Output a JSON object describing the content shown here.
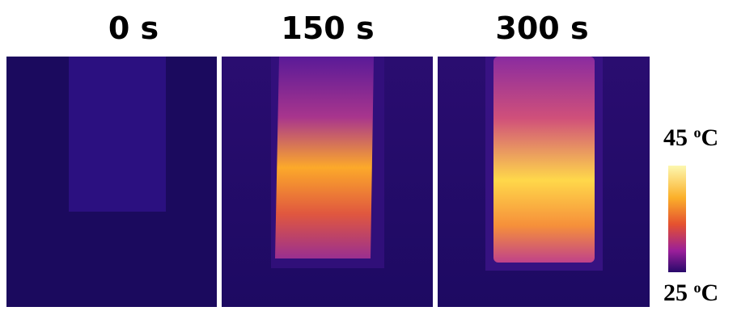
{
  "panels": [
    {
      "label": "0 s"
    },
    {
      "label": "150 s"
    },
    {
      "label": "300 s"
    }
  ],
  "colorbar": {
    "max": {
      "value": "45",
      "degree": "o",
      "unit": "C"
    },
    "min": {
      "value": "25",
      "degree": "o",
      "unit": "C"
    }
  }
}
